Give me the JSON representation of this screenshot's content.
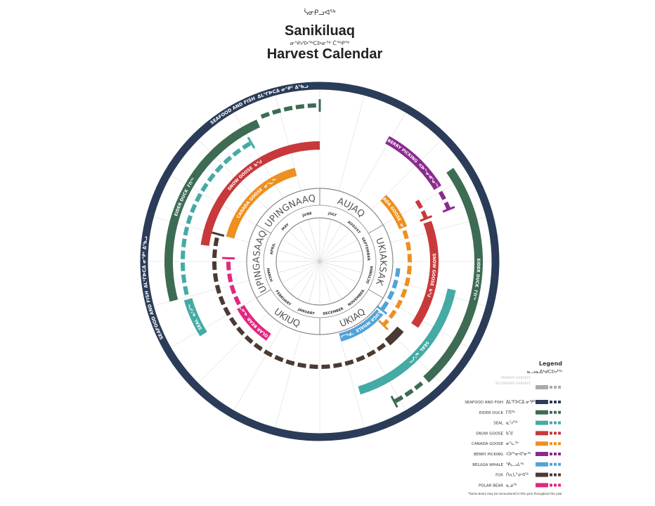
{
  "header": {
    "syllabic_name": "ᓵᓂᑭᓗᐊᖅ",
    "title": "Sanikiluaq",
    "syllabic_subtitle": "ᓂᕿᓯᐅᖅᑕᐅᓂᖅ ᑖᖅᑭᖅ",
    "subtitle": "Harvest Calendar"
  },
  "seasons": [
    "AUJAQ",
    "UKIAKSAK",
    "UKIAQ",
    "UKIUQ",
    "UPINGASAAQ",
    "UPINGNAAQ"
  ],
  "months": [
    "JULY",
    "AUGUST",
    "SEPTEMBER",
    "OCTOBER",
    "NOVEMBER",
    "DECEMBER",
    "JANUARY",
    "FEBRUARY",
    "MARCH",
    "APRIL",
    "MAY",
    "JUNE"
  ],
  "legend": {
    "title": "Legend",
    "syllabic_title": "ᓇᓗᓇᐃᒃᑯᑕᐅᓯᖅ",
    "primary": "PRIMARY HARVEST",
    "secondary": "SECONDARY HARVEST",
    "note": "*Some bears may be encountered in this park throughout the year"
  },
  "species": [
    {
      "name": "SEAFOOD AND FISH",
      "syllabic": "ᐃᒪᕐᒥᐅᑕᐃ ᓂᕿᑦ ᐃᖃᓗ",
      "color": "#2b3c58"
    },
    {
      "name": "EIDER DUCK",
      "syllabic": "ᒥᑎᖅ",
      "color": "#3d6b54"
    },
    {
      "name": "SEAL",
      "syllabic": "ᓇᑦᓯᖅ",
      "color": "#45aaa5"
    },
    {
      "name": "SNOW GOOSE",
      "syllabic": "ᑲᖑ",
      "color": "#c8393b"
    },
    {
      "name": "CANADA GOOSE",
      "syllabic": "ᓂᕐᓚᖅ",
      "color": "#ee8f1f"
    },
    {
      "name": "BERRY PICKING",
      "syllabic": "ᐸᐅᖕᓂᐊᕐᓂᖅ",
      "color": "#8a2a8e"
    },
    {
      "name": "BELUGA WHALE",
      "syllabic": "ᕿᓚᓗᒐᖅ",
      "color": "#4fa3d8"
    },
    {
      "name": "FOX",
      "syllabic": "ᑎᕆᒐᓐᓂᐊᖅ",
      "color": "#4a3a33"
    },
    {
      "name": "POLAR BEAR",
      "syllabic": "ᓇᓄᖅ",
      "color": "#e2277f"
    }
  ]
}
